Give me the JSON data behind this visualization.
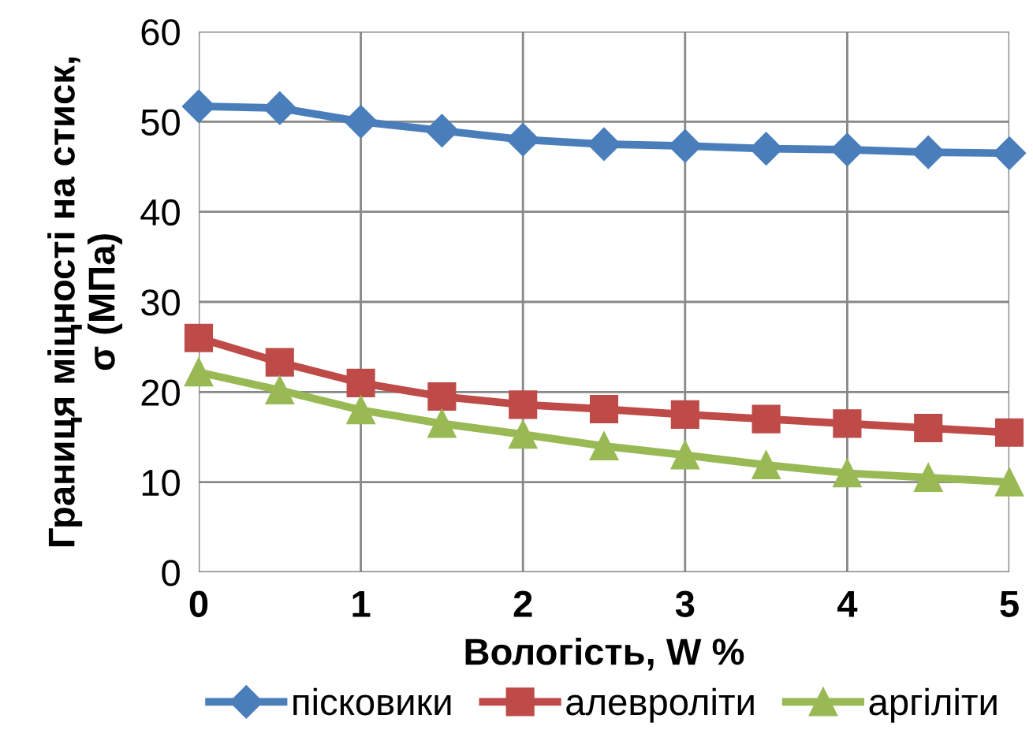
{
  "chart_data": {
    "type": "line",
    "xlabel": "Вологість, W %",
    "ylabel": "Границя міцності на стиск,\nσ (МПа)",
    "x": [
      0,
      0.5,
      1,
      1.5,
      2,
      2.5,
      3,
      3.5,
      4,
      4.5,
      5
    ],
    "series": [
      {
        "name": "пісковики",
        "color": "#4a7ebb",
        "marker": "diamond",
        "values": [
          51.7,
          51.5,
          50,
          49,
          48,
          47.5,
          47.3,
          47,
          46.9,
          46.6,
          46.5
        ]
      },
      {
        "name": "алевроліти",
        "color": "#be4b48",
        "marker": "square",
        "values": [
          26,
          23.3,
          21,
          19.5,
          18.6,
          18.1,
          17.5,
          17,
          16.5,
          16,
          15.5
        ]
      },
      {
        "name": "аргіліти",
        "color": "#98b954",
        "marker": "triangle",
        "values": [
          22.2,
          20.2,
          18,
          16.5,
          15.3,
          14,
          13,
          11.9,
          11,
          10.5,
          10
        ]
      }
    ],
    "xlim": [
      0,
      5
    ],
    "xticks": [
      0,
      1,
      2,
      3,
      4,
      5
    ],
    "ylim": [
      0,
      60
    ],
    "yticks": [
      0,
      10,
      20,
      30,
      40,
      50,
      60
    ],
    "grid": true,
    "legend": "bottom",
    "line_style": "solid"
  }
}
